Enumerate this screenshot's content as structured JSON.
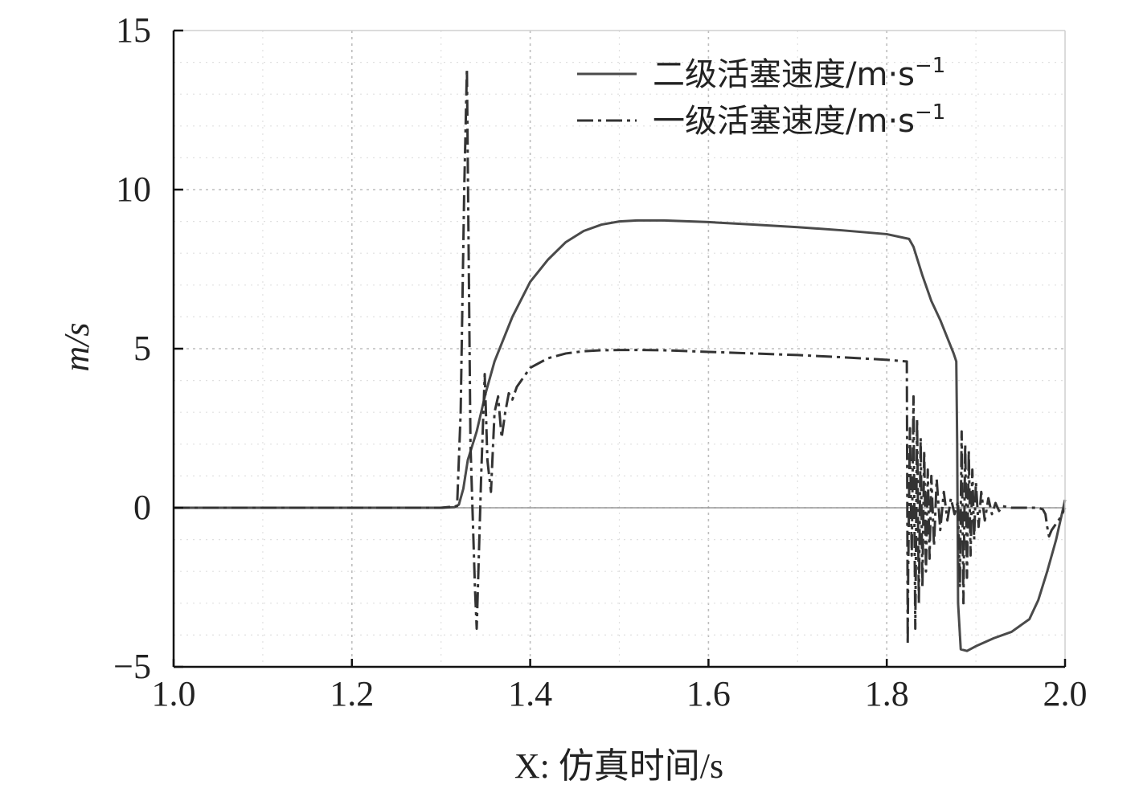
{
  "chart_data": {
    "type": "line",
    "title": "",
    "xlabel": "X: 仿真时间/s",
    "ylabel": "m/s",
    "xlim": [
      1.0,
      2.0
    ],
    "ylim": [
      -5,
      15
    ],
    "xticks": [
      1.0,
      1.2,
      1.4,
      1.6,
      1.8,
      2.0
    ],
    "xtick_labels": [
      "1.0",
      "1.2",
      "1.4",
      "1.6",
      "1.8",
      "2.0"
    ],
    "yticks": [
      -5,
      0,
      5,
      10,
      15
    ],
    "ytick_labels": [
      "−5",
      "0",
      "5",
      "10",
      "15"
    ],
    "grid": true,
    "legend_position": "top-right",
    "series": [
      {
        "name": "二级活塞速度/m·s",
        "unit_superscript": "−1",
        "style": "solid",
        "color": "#4a4a4a",
        "x": [
          1.0,
          1.2,
          1.3,
          1.315,
          1.32,
          1.325,
          1.33,
          1.34,
          1.35,
          1.36,
          1.38,
          1.4,
          1.42,
          1.44,
          1.46,
          1.48,
          1.5,
          1.52,
          1.55,
          1.6,
          1.65,
          1.7,
          1.75,
          1.8,
          1.825,
          1.83,
          1.84,
          1.85,
          1.86,
          1.87,
          1.875,
          1.878,
          1.879,
          1.88,
          1.883,
          1.89,
          1.9,
          1.92,
          1.94,
          1.96,
          1.97,
          1.98,
          1.99,
          2.0
        ],
        "y": [
          0,
          0,
          0,
          0.02,
          0.1,
          0.6,
          1.5,
          2.4,
          3.6,
          4.6,
          6.0,
          7.1,
          7.8,
          8.35,
          8.7,
          8.9,
          9.0,
          9.03,
          9.03,
          8.98,
          8.9,
          8.82,
          8.72,
          8.6,
          8.45,
          8.2,
          7.3,
          6.5,
          5.9,
          5.2,
          4.85,
          4.6,
          2.0,
          -3.0,
          -4.45,
          -4.5,
          -4.35,
          -4.1,
          -3.9,
          -3.5,
          -2.9,
          -2.0,
          -1.0,
          0.25
        ]
      },
      {
        "name": "一级活塞速度/m·s",
        "unit_superscript": "−1",
        "style": "dashdot",
        "color": "#333333",
        "x": [
          1.0,
          1.2,
          1.3,
          1.318,
          1.322,
          1.326,
          1.329,
          1.333,
          1.338,
          1.34,
          1.345,
          1.349,
          1.352,
          1.356,
          1.36,
          1.364,
          1.368,
          1.372,
          1.376,
          1.38,
          1.385,
          1.39,
          1.4,
          1.42,
          1.44,
          1.46,
          1.48,
          1.5,
          1.52,
          1.55,
          1.6,
          1.65,
          1.7,
          1.75,
          1.8,
          1.822,
          1.8225,
          1.823,
          1.8235,
          1.824,
          1.826,
          1.828,
          1.83,
          1.832,
          1.834,
          1.836,
          1.838,
          1.84,
          1.842,
          1.844,
          1.846,
          1.848,
          1.85,
          1.853,
          1.856,
          1.86,
          1.864,
          1.868,
          1.872,
          1.876,
          1.88,
          1.882,
          1.884,
          1.886,
          1.888,
          1.89,
          1.892,
          1.894,
          1.896,
          1.898,
          1.9,
          1.903,
          1.906,
          1.91,
          1.914,
          1.918,
          1.922,
          1.926,
          1.93,
          1.94,
          1.95,
          1.96,
          1.97,
          1.975,
          1.978,
          1.98,
          1.982,
          1.985,
          1.99,
          1.995,
          2.0
        ],
        "y": [
          0,
          0,
          0,
          0.05,
          3.0,
          10.0,
          13.8,
          2.0,
          -2.5,
          -3.8,
          1.0,
          4.2,
          1.5,
          0.5,
          3.0,
          3.5,
          2.2,
          3.0,
          3.6,
          3.4,
          3.8,
          4.0,
          4.4,
          4.7,
          4.85,
          4.92,
          4.95,
          4.96,
          4.96,
          4.95,
          4.9,
          4.85,
          4.8,
          4.73,
          4.65,
          4.6,
          4.6,
          0.5,
          -4.3,
          -2.0,
          2.5,
          -1.5,
          3.5,
          -3.8,
          2.8,
          -3.0,
          2.2,
          -2.5,
          1.8,
          -2.0,
          1.2,
          -1.6,
          1.0,
          -1.2,
          0.9,
          -0.7,
          0.5,
          -0.4,
          0.3,
          -0.2,
          0.2,
          -2.5,
          2.4,
          -3.0,
          2.0,
          -2.2,
          1.8,
          -1.5,
          1.2,
          -1.0,
          0.8,
          -0.6,
          0.5,
          -0.4,
          0.3,
          -0.2,
          0.15,
          -0.1,
          0.05,
          0.0,
          0.0,
          0.0,
          0.0,
          -0.05,
          -0.2,
          -0.6,
          -0.9,
          -0.7,
          -0.5,
          -0.3,
          0.0
        ]
      }
    ]
  }
}
